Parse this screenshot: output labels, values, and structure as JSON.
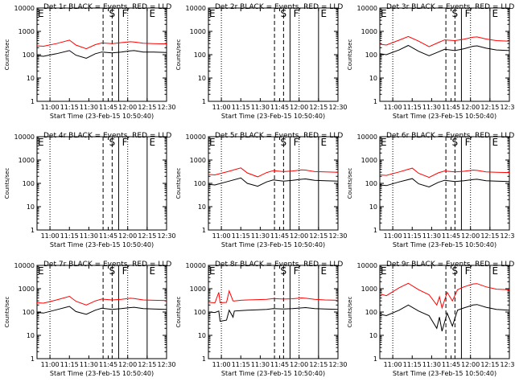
{
  "figure": {
    "ylabel": "Counts/sec",
    "xlabel": "Start Time (23-Feb-15 10:50:40)"
  },
  "colors": {
    "events": "#000000",
    "lld": "#ff0000",
    "background": "#ffffff"
  },
  "chart_data": [
    {
      "type": "line",
      "title": "Det 1r BLACK = Events, RED = LLD",
      "yscale": "log",
      "ylim": [
        1,
        10000
      ],
      "xlim_minutes": [
        0,
        100
      ],
      "xticks": [
        "11:00",
        "11:15",
        "11:30",
        "11:45",
        "12:00",
        "12:15",
        "12:30"
      ],
      "yticks": [
        "1",
        "10",
        "100",
        "1000",
        "10000"
      ],
      "markers": [
        "E",
        "S",
        "F",
        "E"
      ],
      "series": [
        {
          "name": "Events",
          "x": [
            0,
            5,
            15,
            25,
            30,
            38,
            45,
            50,
            58,
            65,
            72,
            75,
            82,
            90,
            100
          ],
          "y": [
            90,
            85,
            110,
            150,
            95,
            70,
            110,
            130,
            120,
            130,
            145,
            150,
            130,
            130,
            125
          ]
        },
        {
          "name": "LLD",
          "x": [
            0,
            5,
            15,
            25,
            30,
            38,
            45,
            50,
            58,
            65,
            72,
            75,
            82,
            90,
            100
          ],
          "y": [
            240,
            230,
            300,
            420,
            260,
            180,
            270,
            320,
            300,
            330,
            360,
            350,
            310,
            300,
            290
          ]
        }
      ]
    },
    {
      "type": "line",
      "title": "Det 2r BLACK = Events, RED = LLD",
      "yscale": "log",
      "ylim": [
        1,
        10000
      ],
      "xlim_minutes": [
        0,
        100
      ],
      "xticks": [
        "11:00",
        "11:15",
        "11:30",
        "11:45",
        "12:00",
        "12:15",
        "12:30"
      ],
      "yticks": [
        "1",
        "10",
        "100",
        "1000",
        "10000"
      ],
      "markers": [
        "E",
        "S",
        "F",
        "E"
      ],
      "series": []
    },
    {
      "type": "line",
      "title": "Det 3r BLACK = Events, RED = LLD",
      "yscale": "log",
      "ylim": [
        1,
        10000
      ],
      "xlim_minutes": [
        0,
        100
      ],
      "xticks": [
        "11:00",
        "11:15",
        "11:30",
        "11:45",
        "12:00",
        "12:15",
        "12:30"
      ],
      "yticks": [
        "1",
        "10",
        "100",
        "1000",
        "10000"
      ],
      "markers": [
        "E",
        "S",
        "F",
        "E"
      ],
      "series": [
        {
          "name": "Events",
          "x": [
            0,
            5,
            15,
            22,
            30,
            38,
            45,
            50,
            58,
            65,
            72,
            75,
            82,
            90,
            100
          ],
          "y": [
            110,
            100,
            160,
            250,
            140,
            90,
            130,
            170,
            150,
            180,
            230,
            240,
            190,
            160,
            150
          ]
        },
        {
          "name": "LLD",
          "x": [
            0,
            5,
            15,
            22,
            30,
            38,
            45,
            50,
            58,
            65,
            72,
            75,
            82,
            90,
            100
          ],
          "y": [
            280,
            260,
            420,
            600,
            380,
            220,
            330,
            430,
            400,
            460,
            560,
            580,
            470,
            400,
            380
          ]
        }
      ]
    },
    {
      "type": "line",
      "title": "Det 4r BLACK = Events, RED = LLD",
      "yscale": "log",
      "ylim": [
        1,
        10000
      ],
      "xlim_minutes": [
        0,
        100
      ],
      "xticks": [
        "11:00",
        "11:15",
        "11:30",
        "11:45",
        "12:00",
        "12:15",
        "12:30"
      ],
      "yticks": [
        "1",
        "10",
        "100",
        "1000",
        "10000"
      ],
      "markers": [
        "E",
        "S",
        "F",
        "E"
      ],
      "series": []
    },
    {
      "type": "line",
      "title": "Det 5r BLACK = Events, RED = LLD",
      "yscale": "log",
      "ylim": [
        1,
        10000
      ],
      "xlim_minutes": [
        0,
        100
      ],
      "xticks": [
        "11:00",
        "11:15",
        "11:30",
        "11:45",
        "12:00",
        "12:15",
        "12:30"
      ],
      "yticks": [
        "1",
        "10",
        "100",
        "1000",
        "10000"
      ],
      "markers": [
        "E",
        "S",
        "F",
        "E"
      ],
      "series": [
        {
          "name": "Events",
          "x": [
            0,
            5,
            15,
            25,
            30,
            38,
            45,
            50,
            58,
            65,
            72,
            75,
            82,
            90,
            100
          ],
          "y": [
            90,
            85,
            120,
            170,
            100,
            75,
            115,
            140,
            125,
            135,
            150,
            155,
            135,
            130,
            125
          ]
        },
        {
          "name": "LLD",
          "x": [
            0,
            5,
            15,
            25,
            30,
            38,
            45,
            50,
            58,
            65,
            72,
            75,
            82,
            90,
            100
          ],
          "y": [
            240,
            230,
            320,
            460,
            280,
            190,
            290,
            350,
            320,
            340,
            380,
            370,
            320,
            310,
            300
          ]
        }
      ]
    },
    {
      "type": "line",
      "title": "Det 6r BLACK = Events, RED = LLD",
      "yscale": "log",
      "ylim": [
        1,
        10000
      ],
      "xlim_minutes": [
        0,
        100
      ],
      "xticks": [
        "11:00",
        "11:15",
        "11:30",
        "11:45",
        "12:00",
        "12:15",
        "12:30"
      ],
      "yticks": [
        "1",
        "10",
        "100",
        "1000",
        "10000"
      ],
      "markers": [
        "E",
        "S",
        "F",
        "E"
      ],
      "series": [
        {
          "name": "Events",
          "x": [
            0,
            5,
            15,
            25,
            30,
            38,
            45,
            50,
            58,
            65,
            72,
            75,
            82,
            90,
            100
          ],
          "y": [
            85,
            80,
            115,
            160,
            95,
            70,
            110,
            135,
            120,
            130,
            145,
            150,
            130,
            125,
            120
          ]
        },
        {
          "name": "LLD",
          "x": [
            0,
            5,
            15,
            25,
            30,
            38,
            45,
            50,
            58,
            65,
            72,
            75,
            82,
            90,
            100
          ],
          "y": [
            230,
            220,
            310,
            450,
            270,
            180,
            280,
            340,
            310,
            330,
            370,
            360,
            310,
            300,
            290
          ]
        }
      ]
    },
    {
      "type": "line",
      "title": "Det 7r BLACK = Events, RED = LLD",
      "yscale": "log",
      "ylim": [
        1,
        10000
      ],
      "xlim_minutes": [
        0,
        100
      ],
      "xticks": [
        "11:00",
        "11:15",
        "11:30",
        "11:45",
        "12:00",
        "12:15",
        "12:30"
      ],
      "yticks": [
        "1",
        "10",
        "100",
        "1000",
        "10000"
      ],
      "markers": [
        "E",
        "S",
        "F",
        "E"
      ],
      "series": [
        {
          "name": "Events",
          "x": [
            0,
            5,
            15,
            25,
            30,
            38,
            45,
            50,
            58,
            65,
            72,
            75,
            82,
            90,
            100
          ],
          "y": [
            95,
            90,
            125,
            175,
            105,
            80,
            120,
            145,
            130,
            140,
            155,
            160,
            140,
            135,
            130
          ]
        },
        {
          "name": "LLD",
          "x": [
            0,
            5,
            15,
            25,
            30,
            38,
            45,
            50,
            58,
            65,
            72,
            75,
            82,
            90,
            100
          ],
          "y": [
            250,
            240,
            330,
            470,
            290,
            200,
            300,
            360,
            330,
            350,
            390,
            380,
            330,
            320,
            310
          ]
        }
      ]
    },
    {
      "type": "line",
      "title": "Det 8r BLACK = Events, RED = LLD",
      "yscale": "log",
      "ylim": [
        1,
        10000
      ],
      "xlim_minutes": [
        0,
        100
      ],
      "xticks": [
        "11:00",
        "11:15",
        "11:30",
        "11:45",
        "12:00",
        "12:15",
        "12:30"
      ],
      "yticks": [
        "1",
        "10",
        "100",
        "1000",
        "10000"
      ],
      "markers": [
        "E",
        "S",
        "F",
        "E"
      ],
      "series": [
        {
          "name": "Events",
          "x": [
            0,
            5,
            8,
            9,
            14,
            16,
            19,
            20,
            25,
            30,
            38,
            45,
            50,
            58,
            65,
            72,
            75,
            82,
            90,
            100
          ],
          "y": [
            100,
            95,
            110,
            40,
            45,
            120,
            60,
            110,
            115,
            120,
            125,
            130,
            140,
            135,
            140,
            150,
            155,
            140,
            135,
            130
          ]
        },
        {
          "name": "LLD",
          "x": [
            0,
            5,
            8,
            9,
            14,
            16,
            19,
            20,
            25,
            30,
            38,
            45,
            50,
            58,
            65,
            72,
            75,
            82,
            90,
            100
          ],
          "y": [
            260,
            250,
            700,
            250,
            260,
            800,
            300,
            300,
            320,
            330,
            340,
            350,
            380,
            360,
            370,
            400,
            390,
            350,
            330,
            320
          ]
        }
      ]
    },
    {
      "type": "line",
      "title": "Det 9r BLACK = Events, RED = LLD",
      "yscale": "log",
      "ylim": [
        1,
        10000
      ],
      "xlim_minutes": [
        0,
        100
      ],
      "xticks": [
        "11:00",
        "11:15",
        "11:30",
        "11:45",
        "12:00",
        "12:15",
        "12:30"
      ],
      "yticks": [
        "1",
        "10",
        "100",
        "1000",
        "10000"
      ],
      "markers": [
        "E",
        "S",
        "F",
        "E"
      ],
      "series": [
        {
          "name": "Events",
          "x": [
            0,
            5,
            15,
            22,
            30,
            38,
            44,
            46,
            48,
            52,
            56,
            60,
            65,
            72,
            75,
            82,
            90,
            100
          ],
          "y": [
            80,
            70,
            120,
            200,
            110,
            70,
            20,
            60,
            15,
            90,
            25,
            120,
            150,
            200,
            210,
            160,
            130,
            120
          ]
        },
        {
          "name": "LLD",
          "x": [
            0,
            5,
            15,
            22,
            30,
            38,
            44,
            46,
            48,
            52,
            56,
            60,
            65,
            72,
            75,
            82,
            90,
            100
          ],
          "y": [
            600,
            500,
            1100,
            1700,
            900,
            550,
            200,
            450,
            150,
            700,
            300,
            900,
            1200,
            1600,
            1650,
            1200,
            950,
            900
          ]
        }
      ]
    }
  ]
}
